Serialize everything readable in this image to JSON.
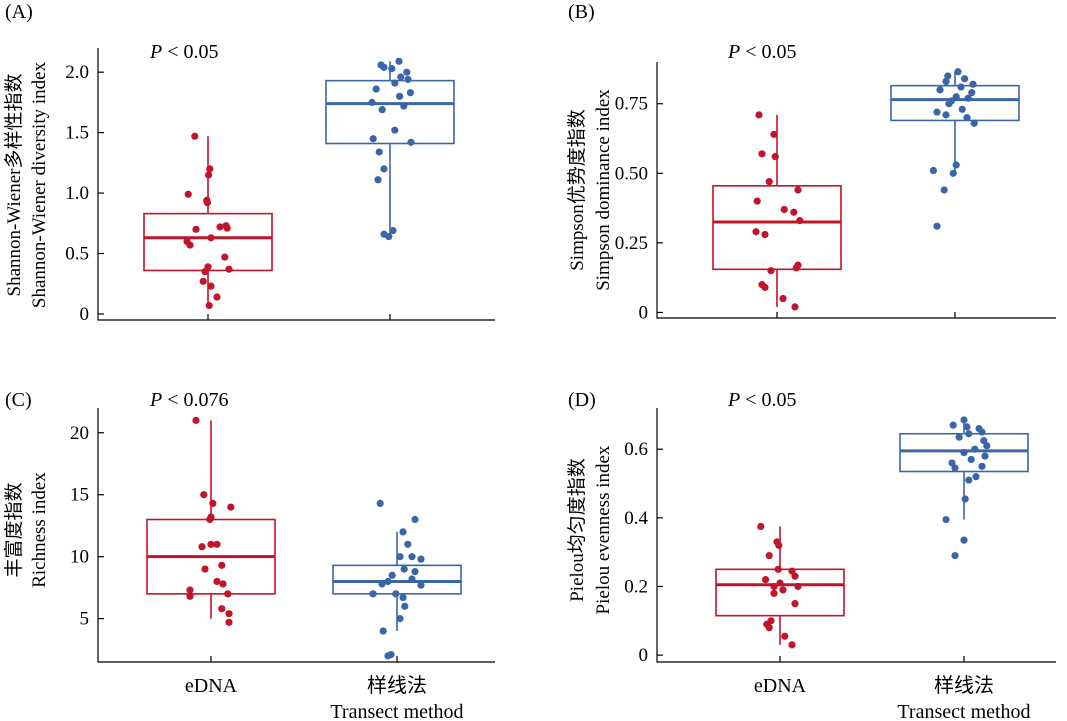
{
  "colors": {
    "edna": "#c0152a",
    "transect": "#3a66a8"
  },
  "chart_data": [
    {
      "type": "box",
      "panel_label": "(A)",
      "annotation": {
        "italic": "P",
        "rest": " < 0.05"
      },
      "ylabel": [
        "Shannon-Wiener多样性指数",
        "Shannon-Wiener diversity index"
      ],
      "ylim": [
        -0.05,
        2.2
      ],
      "yticks": [
        0,
        0.5,
        1.0,
        1.5,
        2.0
      ],
      "ytick_labels": [
        "0",
        "0.5",
        "1.0",
        "1.5",
        "2.0"
      ],
      "categories": [
        [
          "eDNA"
        ],
        [
          "样线法",
          "Transect method"
        ]
      ],
      "show_category_labels": false,
      "series": [
        {
          "box": {
            "q1": 0.36,
            "median": 0.63,
            "q3": 0.83,
            "whisker_low": 0.07,
            "whisker_high": 1.47
          },
          "points": [
            1.47,
            1.2,
            1.15,
            0.99,
            0.94,
            0.92,
            0.73,
            0.72,
            0.71,
            0.7,
            0.63,
            0.6,
            0.57,
            0.47,
            0.39,
            0.37,
            0.35,
            0.27,
            0.23,
            0.14,
            0.07
          ],
          "jitter": [
            -0.22,
            0.03,
            0.01,
            -0.33,
            -0.02,
            -0.01,
            0.3,
            0.2,
            0.32,
            -0.2,
            0.05,
            -0.35,
            -0.3,
            0.28,
            0.0,
            0.35,
            -0.05,
            -0.08,
            0.05,
            0.15,
            0.02
          ]
        },
        {
          "box": {
            "q1": 1.41,
            "median": 1.74,
            "q3": 1.93,
            "whisker_low": 0.63,
            "whisker_high": 2.09
          },
          "points": [
            2.09,
            2.06,
            2.04,
            2.03,
            2.0,
            1.96,
            1.94,
            1.91,
            1.86,
            1.83,
            1.8,
            1.75,
            1.72,
            1.69,
            1.52,
            1.45,
            1.42,
            1.34,
            1.2,
            1.11,
            0.69,
            0.66,
            0.64
          ],
          "jitter": [
            0.15,
            -0.15,
            -0.1,
            0.03,
            0.28,
            0.18,
            0.3,
            0.08,
            -0.23,
            0.34,
            0.16,
            -0.3,
            0.23,
            -0.13,
            0.08,
            -0.28,
            0.35,
            -0.18,
            -0.1,
            -0.2,
            0.05,
            -0.1,
            -0.02
          ]
        }
      ]
    },
    {
      "type": "box",
      "panel_label": "(B)",
      "annotation": {
        "italic": "P",
        "rest": " < 0.05"
      },
      "ylabel": [
        "Simpson优势度指数",
        "Simpson dominance index"
      ],
      "ylim": [
        -0.02,
        0.9
      ],
      "yticks": [
        0,
        0.25,
        0.5,
        0.75
      ],
      "ytick_labels": [
        "0",
        "0.25",
        "0.50",
        "0.75"
      ],
      "categories": [
        [
          "eDNA"
        ],
        [
          "样线法",
          "Transect method"
        ]
      ],
      "show_category_labels": false,
      "series": [
        {
          "box": {
            "q1": 0.155,
            "median": 0.325,
            "q3": 0.455,
            "whisker_low": 0.02,
            "whisker_high": 0.71
          },
          "points": [
            0.71,
            0.64,
            0.57,
            0.56,
            0.47,
            0.44,
            0.4,
            0.37,
            0.36,
            0.33,
            0.29,
            0.28,
            0.17,
            0.16,
            0.15,
            0.1,
            0.09,
            0.05,
            0.02
          ],
          "jitter": [
            -0.3,
            -0.05,
            -0.25,
            -0.03,
            -0.13,
            0.35,
            -0.33,
            0.12,
            0.28,
            0.38,
            -0.35,
            -0.2,
            0.35,
            0.32,
            -0.1,
            -0.25,
            -0.2,
            0.1,
            0.3
          ]
        },
        {
          "box": {
            "q1": 0.69,
            "median": 0.765,
            "q3": 0.815,
            "whisker_low": 0.5,
            "whisker_high": 0.865
          },
          "points": [
            0.865,
            0.85,
            0.84,
            0.83,
            0.82,
            0.81,
            0.8,
            0.79,
            0.775,
            0.77,
            0.76,
            0.75,
            0.73,
            0.72,
            0.71,
            0.7,
            0.68,
            0.53,
            0.51,
            0.5,
            0.44,
            0.31
          ],
          "jitter": [
            0.05,
            -0.12,
            0.16,
            -0.15,
            0.3,
            0.1,
            -0.25,
            0.28,
            0.02,
            0.22,
            -0.06,
            -0.1,
            0.12,
            -0.3,
            -0.15,
            0.2,
            0.32,
            0.02,
            -0.36,
            -0.03,
            -0.18,
            -0.3
          ]
        }
      ]
    },
    {
      "type": "box",
      "panel_label": "(C)",
      "annotation": {
        "italic": "P",
        "rest": " < 0.076"
      },
      "ylabel": [
        "丰富度指数",
        "Richness index"
      ],
      "ylim": [
        1.5,
        22
      ],
      "yticks": [
        5,
        10,
        15,
        20
      ],
      "ytick_labels": [
        "5",
        "10",
        "15",
        "20"
      ],
      "categories": [
        [
          "eDNA"
        ],
        [
          "样线法",
          "Transect method"
        ]
      ],
      "show_category_labels": true,
      "series": [
        {
          "box": {
            "q1": 7,
            "median": 10,
            "q3": 13,
            "whisker_low": 5,
            "whisker_high": 21
          },
          "points": [
            21,
            15,
            14.3,
            14,
            13.2,
            13,
            11,
            11,
            10.8,
            9.3,
            9,
            8,
            7.8,
            7.3,
            7,
            6.8,
            5.8,
            5.4,
            4.7
          ],
          "jitter": [
            -0.25,
            -0.12,
            0.03,
            0.33,
            0.0,
            -0.02,
            0.1,
            0.0,
            -0.15,
            0.18,
            -0.1,
            0.1,
            0.2,
            -0.35,
            0.28,
            -0.35,
            0.18,
            0.3,
            0.3
          ]
        },
        {
          "box": {
            "q1": 7,
            "median": 8,
            "q3": 9.3,
            "whisker_low": 4,
            "whisker_high": 12
          },
          "points": [
            14.3,
            13,
            12,
            11,
            10,
            10,
            9.8,
            9,
            8.8,
            8.5,
            8.2,
            8,
            7.8,
            7.7,
            7,
            7,
            6.7,
            6,
            5,
            4,
            2.1,
            2
          ],
          "jitter": [
            -0.28,
            0.3,
            0.1,
            0.18,
            0.05,
            0.25,
            0.4,
            0.12,
            0.3,
            -0.08,
            0.25,
            -0.15,
            -0.25,
            0.4,
            -0.4,
            -0.02,
            0.1,
            0.13,
            0.05,
            -0.23,
            -0.1,
            -0.15
          ]
        }
      ]
    },
    {
      "type": "box",
      "panel_label": "(D)",
      "annotation": {
        "italic": "P",
        "rest": " < 0.05"
      },
      "ylabel": [
        "Pielou均匀度指数",
        "Pielou evenness index"
      ],
      "ylim": [
        -0.02,
        0.72
      ],
      "yticks": [
        0,
        0.2,
        0.4,
        0.6
      ],
      "ytick_labels": [
        "0",
        "0.2",
        "0.4",
        "0.6"
      ],
      "categories": [
        [
          "eDNA"
        ],
        [
          "样线法",
          "Transect method"
        ]
      ],
      "show_category_labels": true,
      "series": [
        {
          "box": {
            "q1": 0.115,
            "median": 0.205,
            "q3": 0.25,
            "whisker_low": 0.03,
            "whisker_high": 0.375
          },
          "points": [
            0.375,
            0.33,
            0.32,
            0.29,
            0.25,
            0.245,
            0.23,
            0.22,
            0.21,
            0.2,
            0.2,
            0.19,
            0.18,
            0.15,
            0.1,
            0.09,
            0.08,
            0.055,
            0.03
          ],
          "jitter": [
            -0.32,
            -0.05,
            -0.02,
            -0.18,
            -0.03,
            0.2,
            0.25,
            -0.24,
            0.0,
            -0.1,
            0.3,
            0.05,
            -0.1,
            0.25,
            -0.15,
            -0.22,
            -0.18,
            0.08,
            0.2
          ]
        },
        {
          "box": {
            "q1": 0.535,
            "median": 0.595,
            "q3": 0.645,
            "whisker_low": 0.395,
            "whisker_high": 0.685
          },
          "points": [
            0.685,
            0.67,
            0.665,
            0.66,
            0.65,
            0.645,
            0.635,
            0.625,
            0.61,
            0.6,
            0.59,
            0.58,
            0.57,
            0.56,
            0.55,
            0.545,
            0.52,
            0.51,
            0.455,
            0.395,
            0.335,
            0.29
          ],
          "jitter": [
            0.0,
            -0.18,
            0.05,
            0.25,
            0.3,
            0.08,
            -0.08,
            0.33,
            0.38,
            0.18,
            0.0,
            0.35,
            0.12,
            -0.2,
            0.3,
            -0.15,
            0.2,
            0.08,
            0.02,
            -0.3,
            0.0,
            -0.15
          ]
        }
      ]
    }
  ]
}
